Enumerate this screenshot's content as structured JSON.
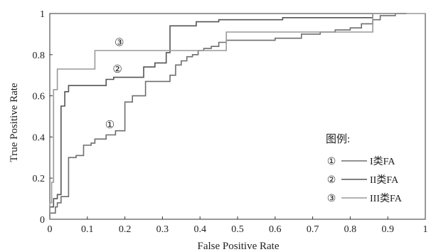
{
  "chart_data": {
    "type": "line",
    "title": "",
    "xlabel": "False Positive Rate",
    "ylabel": "True Positive Rate",
    "xlim": [
      0,
      1
    ],
    "ylim": [
      0,
      1
    ],
    "xticks": [
      "0",
      "0.1",
      "0.2",
      "0.3",
      "0.4",
      "0.5",
      "0.6",
      "0.7",
      "0.8",
      "0.9",
      "1"
    ],
    "yticks": [
      "0",
      "0.2",
      "0.4",
      "0.6",
      "0.8",
      "1"
    ],
    "grid": false,
    "legend": {
      "title": "图例:",
      "placement": "bottom-right",
      "entries": [
        {
          "marker": "①",
          "label": "I类FA"
        },
        {
          "marker": "②",
          "label": "II类FA"
        },
        {
          "marker": "③",
          "label": "III类FA"
        }
      ]
    },
    "series": [
      {
        "name": "I类FA",
        "marker": "①",
        "color": "#6e6e6e",
        "annotation_at": [
          0.16,
          0.46
        ],
        "points": [
          [
            0,
            0
          ],
          [
            0,
            0.03
          ],
          [
            0.015,
            0.03
          ],
          [
            0.015,
            0.06
          ],
          [
            0.02,
            0.06
          ],
          [
            0.02,
            0.08
          ],
          [
            0.03,
            0.08
          ],
          [
            0.03,
            0.11
          ],
          [
            0.05,
            0.11
          ],
          [
            0.05,
            0.3
          ],
          [
            0.07,
            0.3
          ],
          [
            0.07,
            0.31
          ],
          [
            0.09,
            0.31
          ],
          [
            0.09,
            0.36
          ],
          [
            0.11,
            0.36
          ],
          [
            0.11,
            0.37
          ],
          [
            0.12,
            0.37
          ],
          [
            0.12,
            0.39
          ],
          [
            0.15,
            0.39
          ],
          [
            0.15,
            0.41
          ],
          [
            0.175,
            0.41
          ],
          [
            0.175,
            0.43
          ],
          [
            0.2,
            0.43
          ],
          [
            0.2,
            0.57
          ],
          [
            0.22,
            0.57
          ],
          [
            0.22,
            0.6
          ],
          [
            0.255,
            0.6
          ],
          [
            0.255,
            0.67
          ],
          [
            0.32,
            0.67
          ],
          [
            0.32,
            0.7
          ],
          [
            0.335,
            0.7
          ],
          [
            0.335,
            0.75
          ],
          [
            0.35,
            0.75
          ],
          [
            0.35,
            0.77
          ],
          [
            0.365,
            0.77
          ],
          [
            0.365,
            0.79
          ],
          [
            0.38,
            0.79
          ],
          [
            0.38,
            0.8
          ],
          [
            0.395,
            0.8
          ],
          [
            0.395,
            0.82
          ],
          [
            0.41,
            0.82
          ],
          [
            0.41,
            0.83
          ],
          [
            0.43,
            0.83
          ],
          [
            0.43,
            0.84
          ],
          [
            0.45,
            0.84
          ],
          [
            0.45,
            0.86
          ],
          [
            0.47,
            0.86
          ],
          [
            0.47,
            0.87
          ],
          [
            0.6,
            0.87
          ],
          [
            0.6,
            0.88
          ],
          [
            0.67,
            0.88
          ],
          [
            0.67,
            0.9
          ],
          [
            0.72,
            0.9
          ],
          [
            0.72,
            0.91
          ],
          [
            0.76,
            0.91
          ],
          [
            0.76,
            0.92
          ],
          [
            0.8,
            0.92
          ],
          [
            0.8,
            0.93
          ],
          [
            0.83,
            0.93
          ],
          [
            0.83,
            0.95
          ],
          [
            0.86,
            0.95
          ],
          [
            0.86,
            0.97
          ],
          [
            0.88,
            0.97
          ],
          [
            0.88,
            0.99
          ],
          [
            0.92,
            0.99
          ],
          [
            0.92,
            1.0
          ],
          [
            0.95,
            1.0
          ]
        ]
      },
      {
        "name": "II类FA",
        "marker": "②",
        "color": "#555555",
        "annotation_at": [
          0.18,
          0.73
        ],
        "points": [
          [
            0,
            0
          ],
          [
            0,
            0.06
          ],
          [
            0.01,
            0.06
          ],
          [
            0.01,
            0.1
          ],
          [
            0.02,
            0.1
          ],
          [
            0.02,
            0.12
          ],
          [
            0.03,
            0.12
          ],
          [
            0.03,
            0.55
          ],
          [
            0.04,
            0.55
          ],
          [
            0.04,
            0.62
          ],
          [
            0.05,
            0.62
          ],
          [
            0.05,
            0.65
          ],
          [
            0.15,
            0.65
          ],
          [
            0.15,
            0.68
          ],
          [
            0.17,
            0.68
          ],
          [
            0.17,
            0.69
          ],
          [
            0.25,
            0.69
          ],
          [
            0.25,
            0.74
          ],
          [
            0.28,
            0.74
          ],
          [
            0.28,
            0.76
          ],
          [
            0.31,
            0.76
          ],
          [
            0.31,
            0.81
          ],
          [
            0.32,
            0.81
          ],
          [
            0.32,
            0.94
          ],
          [
            0.39,
            0.94
          ],
          [
            0.39,
            0.96
          ],
          [
            0.45,
            0.96
          ],
          [
            0.45,
            0.97
          ],
          [
            0.62,
            0.97
          ],
          [
            0.62,
            0.98
          ],
          [
            0.86,
            0.98
          ],
          [
            0.86,
            1.0
          ],
          [
            0.95,
            1.0
          ]
        ]
      },
      {
        "name": "III类FA",
        "marker": "③",
        "color": "#9a9a9a",
        "annotation_at": [
          0.185,
          0.86
        ],
        "points": [
          [
            0,
            0
          ],
          [
            0,
            0.08
          ],
          [
            0.005,
            0.08
          ],
          [
            0.005,
            0.18
          ],
          [
            0.01,
            0.18
          ],
          [
            0.01,
            0.63
          ],
          [
            0.02,
            0.63
          ],
          [
            0.02,
            0.73
          ],
          [
            0.12,
            0.73
          ],
          [
            0.12,
            0.82
          ],
          [
            0.47,
            0.82
          ],
          [
            0.47,
            0.91
          ],
          [
            0.86,
            0.91
          ],
          [
            0.86,
            1.0
          ],
          [
            1.0,
            1.0
          ]
        ]
      }
    ]
  }
}
